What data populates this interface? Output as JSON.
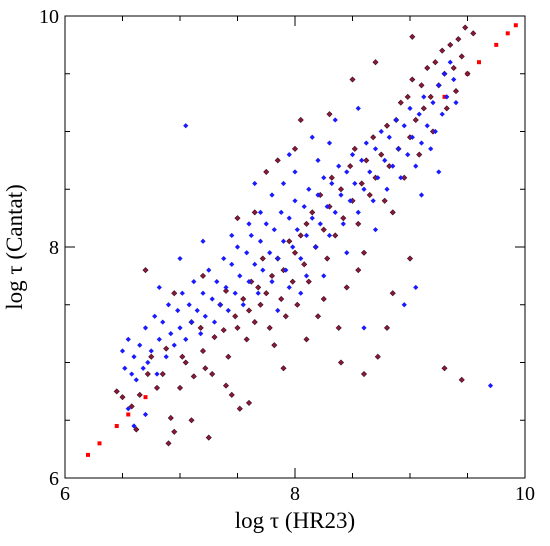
{
  "chart_data": {
    "type": "scatter",
    "title": "",
    "xlabel": "log τ (HR23)",
    "ylabel": "log τ (Cantat)",
    "xlim": [
      6,
      10
    ],
    "ylim": [
      6,
      10
    ],
    "x_ticks": [
      "6",
      "8",
      "10"
    ],
    "y_ticks": [
      "6",
      "8",
      "10"
    ],
    "grid": false,
    "legend": "none",
    "colors": {
      "blue_series": "#1a1aff",
      "dark_series": "#8b1a3a",
      "dark_series_edge": "#3a0a18",
      "identity_line": "#ff0000",
      "axes": "#000000"
    },
    "series": [
      {
        "style": "red dotted one-to-one line",
        "points": [
          [
            6.2,
            6.2
          ],
          [
            6.3,
            6.3
          ],
          [
            6.45,
            6.45
          ],
          [
            6.55,
            6.55
          ],
          [
            6.7,
            6.7
          ],
          [
            9.3,
            9.3
          ],
          [
            9.5,
            9.5
          ],
          [
            9.6,
            9.6
          ],
          [
            9.75,
            9.75
          ],
          [
            9.85,
            9.85
          ],
          [
            9.92,
            9.92
          ]
        ]
      },
      {
        "style": "dark red diamonds",
        "points": [
          [
            6.45,
            6.75
          ],
          [
            6.5,
            6.7
          ],
          [
            6.58,
            6.62
          ],
          [
            6.62,
            6.42
          ],
          [
            6.65,
            6.72
          ],
          [
            6.72,
            6.9
          ],
          [
            6.75,
            7.05
          ],
          [
            6.8,
            6.78
          ],
          [
            6.85,
            6.9
          ],
          [
            6.88,
            7.12
          ],
          [
            6.92,
            6.52
          ],
          [
            6.95,
            6.4
          ],
          [
            7.0,
            6.78
          ],
          [
            7.02,
            7.05
          ],
          [
            7.05,
            7.0
          ],
          [
            7.1,
            7.35
          ],
          [
            7.12,
            6.88
          ],
          [
            7.18,
            7.3
          ],
          [
            7.2,
            7.1
          ],
          [
            7.22,
            6.95
          ],
          [
            7.25,
            6.35
          ],
          [
            7.28,
            6.9
          ],
          [
            7.3,
            7.22
          ],
          [
            7.35,
            7.5
          ],
          [
            7.38,
            7.28
          ],
          [
            7.4,
            7.62
          ],
          [
            7.42,
            7.05
          ],
          [
            7.45,
            6.72
          ],
          [
            7.48,
            7.4
          ],
          [
            7.5,
            7.3
          ],
          [
            7.52,
            6.6
          ],
          [
            7.55,
            7.55
          ],
          [
            7.58,
            7.2
          ],
          [
            7.6,
            7.45
          ],
          [
            7.62,
            7.7
          ],
          [
            7.65,
            7.35
          ],
          [
            7.68,
            7.65
          ],
          [
            7.7,
            7.5
          ],
          [
            7.72,
            7.9
          ],
          [
            7.75,
            7.6
          ],
          [
            7.78,
            7.3
          ],
          [
            7.8,
            7.75
          ],
          [
            7.82,
            7.15
          ],
          [
            7.85,
            7.9
          ],
          [
            7.88,
            7.55
          ],
          [
            7.9,
            7.8
          ],
          [
            7.92,
            7.4
          ],
          [
            7.95,
            8.05
          ],
          [
            7.98,
            7.7
          ],
          [
            8.0,
            7.95
          ],
          [
            8.02,
            7.5
          ],
          [
            8.05,
            8.1
          ],
          [
            8.08,
            7.85
          ],
          [
            8.1,
            8.2
          ],
          [
            8.12,
            7.7
          ],
          [
            8.15,
            8.3
          ],
          [
            8.18,
            8.0
          ],
          [
            8.2,
            7.4
          ],
          [
            8.22,
            8.45
          ],
          [
            8.25,
            8.15
          ],
          [
            8.28,
            7.9
          ],
          [
            8.3,
            8.35
          ],
          [
            8.32,
            8.6
          ],
          [
            8.35,
            8.1
          ],
          [
            8.38,
            7.3
          ],
          [
            8.4,
            8.5
          ],
          [
            8.42,
            8.25
          ],
          [
            8.45,
            7.65
          ],
          [
            8.48,
            8.7
          ],
          [
            8.5,
            8.4
          ],
          [
            8.52,
            8.85
          ],
          [
            8.55,
            8.2
          ],
          [
            8.58,
            8.55
          ],
          [
            8.6,
            7.95
          ],
          [
            8.62,
            8.75
          ],
          [
            8.65,
            8.45
          ],
          [
            8.68,
            8.95
          ],
          [
            8.7,
            8.6
          ],
          [
            8.72,
            7.05
          ],
          [
            8.75,
            8.8
          ],
          [
            8.78,
            8.4
          ],
          [
            8.8,
            9.05
          ],
          [
            8.82,
            8.7
          ],
          [
            8.85,
            8.3
          ],
          [
            8.88,
            9.1
          ],
          [
            8.9,
            8.85
          ],
          [
            8.92,
            9.25
          ],
          [
            8.95,
            8.6
          ],
          [
            8.98,
            9.3
          ],
          [
            9.0,
            8.95
          ],
          [
            9.02,
            9.45
          ],
          [
            9.05,
            9.1
          ],
          [
            9.08,
            8.8
          ],
          [
            9.1,
            9.4
          ],
          [
            9.12,
            9.2
          ],
          [
            9.15,
            9.55
          ],
          [
            9.18,
            9.3
          ],
          [
            9.2,
            9.0
          ],
          [
            9.22,
            9.6
          ],
          [
            9.25,
            9.4
          ],
          [
            9.28,
            9.7
          ],
          [
            9.3,
            9.5
          ],
          [
            9.32,
            9.2
          ],
          [
            9.35,
            9.75
          ],
          [
            9.38,
            9.55
          ],
          [
            9.4,
            9.35
          ],
          [
            9.42,
            9.8
          ],
          [
            9.45,
            9.65
          ],
          [
            9.48,
            9.9
          ],
          [
            9.5,
            9.5
          ],
          [
            9.55,
            9.85
          ],
          [
            9.02,
            9.82
          ],
          [
            8.7,
            9.6
          ],
          [
            8.5,
            9.45
          ],
          [
            8.3,
            9.15
          ],
          [
            8.0,
            8.85
          ],
          [
            7.75,
            8.65
          ],
          [
            7.5,
            8.25
          ],
          [
            7.2,
            7.75
          ],
          [
            6.95,
            7.6
          ],
          [
            6.7,
            7.8
          ],
          [
            8.1,
            7.2
          ],
          [
            8.4,
            7.0
          ],
          [
            8.6,
            6.9
          ],
          [
            8.8,
            7.3
          ],
          [
            9.0,
            7.9
          ],
          [
            9.3,
            6.95
          ],
          [
            9.45,
            6.85
          ],
          [
            7.6,
            6.65
          ],
          [
            7.9,
            6.95
          ],
          [
            7.4,
            6.8
          ],
          [
            7.1,
            6.5
          ],
          [
            6.9,
            6.3
          ],
          [
            8.25,
            7.55
          ],
          [
            8.55,
            7.8
          ],
          [
            8.85,
            7.6
          ],
          [
            7.85,
            8.75
          ],
          [
            8.05,
            9.1
          ],
          [
            7.65,
            8.3
          ]
        ]
      },
      {
        "style": "blue diamonds",
        "points": [
          [
            6.5,
            7.1
          ],
          [
            6.52,
            6.95
          ],
          [
            6.55,
            7.2
          ],
          [
            6.58,
            6.9
          ],
          [
            6.6,
            7.05
          ],
          [
            6.62,
            6.85
          ],
          [
            6.65,
            7.15
          ],
          [
            6.68,
            6.95
          ],
          [
            6.7,
            7.3
          ],
          [
            6.72,
            7.0
          ],
          [
            6.75,
            7.1
          ],
          [
            6.78,
            7.4
          ],
          [
            6.8,
            6.9
          ],
          [
            6.82,
            7.2
          ],
          [
            6.85,
            7.35
          ],
          [
            6.88,
            7.05
          ],
          [
            6.9,
            7.5
          ],
          [
            6.92,
            7.25
          ],
          [
            6.95,
            7.15
          ],
          [
            6.98,
            7.45
          ],
          [
            7.0,
            7.3
          ],
          [
            7.02,
            7.6
          ],
          [
            7.05,
            7.2
          ],
          [
            7.08,
            7.5
          ],
          [
            7.1,
            7.35
          ],
          [
            7.12,
            7.7
          ],
          [
            7.15,
            7.45
          ],
          [
            7.18,
            7.25
          ],
          [
            7.2,
            7.6
          ],
          [
            7.22,
            7.4
          ],
          [
            7.25,
            7.8
          ],
          [
            7.28,
            7.55
          ],
          [
            7.3,
            7.35
          ],
          [
            7.32,
            7.7
          ],
          [
            7.35,
            7.5
          ],
          [
            7.38,
            7.9
          ],
          [
            7.4,
            7.65
          ],
          [
            7.42,
            7.45
          ],
          [
            7.45,
            7.85
          ],
          [
            7.48,
            7.6
          ],
          [
            7.5,
            8.0
          ],
          [
            7.52,
            7.75
          ],
          [
            7.55,
            7.5
          ],
          [
            7.58,
            7.95
          ],
          [
            7.6,
            7.7
          ],
          [
            7.62,
            8.1
          ],
          [
            7.65,
            7.85
          ],
          [
            7.68,
            7.6
          ],
          [
            7.7,
            8.05
          ],
          [
            7.72,
            7.8
          ],
          [
            7.75,
            8.2
          ],
          [
            7.78,
            7.95
          ],
          [
            7.8,
            7.7
          ],
          [
            7.82,
            8.15
          ],
          [
            7.85,
            7.9
          ],
          [
            7.88,
            8.3
          ],
          [
            7.9,
            8.05
          ],
          [
            7.92,
            7.8
          ],
          [
            7.95,
            8.25
          ],
          [
            7.98,
            8.0
          ],
          [
            8.0,
            8.4
          ],
          [
            8.02,
            8.15
          ],
          [
            8.05,
            7.9
          ],
          [
            8.08,
            8.35
          ],
          [
            8.1,
            8.1
          ],
          [
            8.12,
            8.5
          ],
          [
            8.15,
            8.25
          ],
          [
            8.18,
            8.0
          ],
          [
            8.2,
            8.45
          ],
          [
            8.22,
            8.2
          ],
          [
            8.25,
            8.6
          ],
          [
            8.28,
            8.35
          ],
          [
            8.3,
            8.1
          ],
          [
            8.32,
            8.55
          ],
          [
            8.35,
            8.3
          ],
          [
            8.38,
            8.7
          ],
          [
            8.4,
            8.45
          ],
          [
            8.42,
            8.2
          ],
          [
            8.45,
            8.65
          ],
          [
            8.48,
            8.4
          ],
          [
            8.5,
            8.8
          ],
          [
            8.52,
            8.55
          ],
          [
            8.55,
            8.3
          ],
          [
            8.58,
            8.75
          ],
          [
            8.6,
            8.5
          ],
          [
            8.62,
            8.9
          ],
          [
            8.65,
            8.65
          ],
          [
            8.68,
            8.4
          ],
          [
            8.7,
            8.85
          ],
          [
            8.72,
            8.6
          ],
          [
            8.75,
            9.0
          ],
          [
            8.78,
            8.75
          ],
          [
            8.8,
            8.5
          ],
          [
            8.82,
            8.95
          ],
          [
            8.85,
            8.7
          ],
          [
            8.88,
            9.1
          ],
          [
            8.9,
            8.85
          ],
          [
            8.92,
            8.6
          ],
          [
            8.95,
            9.05
          ],
          [
            8.98,
            8.8
          ],
          [
            9.0,
            9.2
          ],
          [
            9.02,
            8.95
          ],
          [
            9.05,
            8.7
          ],
          [
            9.08,
            9.15
          ],
          [
            9.1,
            8.9
          ],
          [
            9.12,
            9.3
          ],
          [
            9.15,
            9.05
          ],
          [
            9.18,
            8.85
          ],
          [
            9.2,
            9.25
          ],
          [
            9.22,
            9.0
          ],
          [
            9.25,
            9.4
          ],
          [
            9.28,
            9.15
          ],
          [
            9.3,
            9.5
          ],
          [
            9.32,
            9.3
          ],
          [
            9.35,
            9.6
          ],
          [
            9.38,
            9.45
          ],
          [
            9.4,
            9.25
          ],
          [
            7.8,
            8.45
          ],
          [
            7.9,
            8.55
          ],
          [
            8.0,
            8.65
          ],
          [
            8.05,
            7.6
          ],
          [
            7.85,
            7.45
          ],
          [
            7.95,
            7.65
          ],
          [
            8.1,
            7.75
          ],
          [
            8.2,
            8.75
          ],
          [
            8.3,
            8.9
          ],
          [
            7.7,
            8.3
          ],
          [
            7.6,
            8.2
          ],
          [
            7.45,
            8.1
          ],
          [
            7.2,
            8.05
          ],
          [
            7.0,
            7.9
          ],
          [
            6.82,
            7.65
          ],
          [
            6.55,
            6.6
          ],
          [
            6.6,
            6.45
          ],
          [
            6.7,
            6.55
          ],
          [
            8.6,
            7.3
          ],
          [
            8.95,
            7.5
          ],
          [
            9.05,
            7.65
          ],
          [
            9.7,
            6.8
          ],
          [
            8.25,
            7.75
          ],
          [
            8.45,
            7.95
          ],
          [
            8.7,
            8.15
          ],
          [
            9.1,
            8.45
          ],
          [
            9.25,
            8.65
          ],
          [
            8.15,
            8.95
          ],
          [
            8.35,
            9.1
          ],
          [
            8.55,
            9.2
          ],
          [
            7.95,
            8.8
          ],
          [
            7.65,
            8.55
          ],
          [
            7.05,
            9.05
          ]
        ]
      }
    ]
  }
}
